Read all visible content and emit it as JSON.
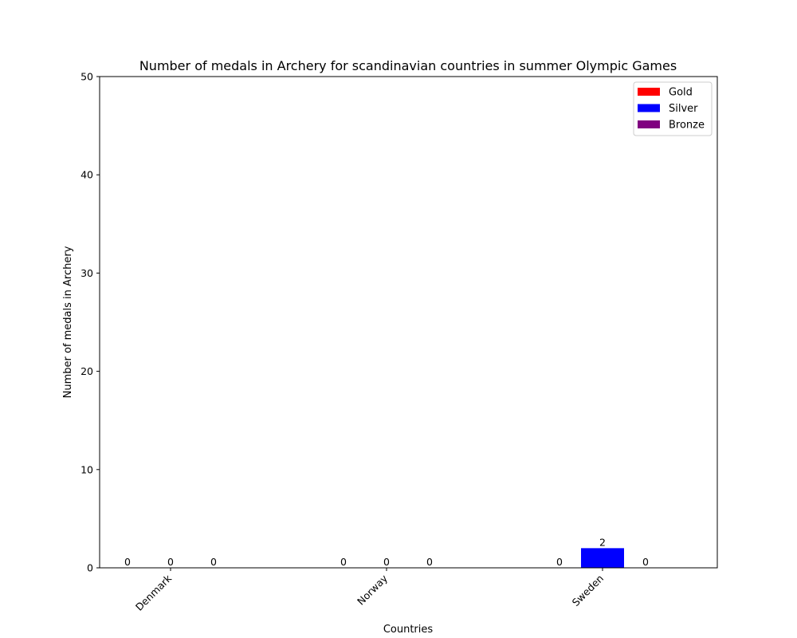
{
  "chart_data": {
    "type": "bar",
    "title": "Number of medals in Archery for scandinavian countries in summer Olympic Games",
    "xlabel": "Countries",
    "ylabel": "Number of medals in Archery",
    "categories": [
      "Denmark",
      "Norway",
      "Sweden"
    ],
    "series": [
      {
        "name": "Gold",
        "color": "#ff0000",
        "values": [
          0,
          0,
          0
        ]
      },
      {
        "name": "Silver",
        "color": "#0000ff",
        "values": [
          0,
          0,
          2
        ]
      },
      {
        "name": "Bronze",
        "color": "#800080",
        "values": [
          0,
          0,
          0
        ]
      }
    ],
    "ylim": [
      0,
      50
    ],
    "yticks": [
      0,
      10,
      20,
      30,
      40,
      50
    ],
    "grid": false,
    "legend_position": "top-right"
  }
}
